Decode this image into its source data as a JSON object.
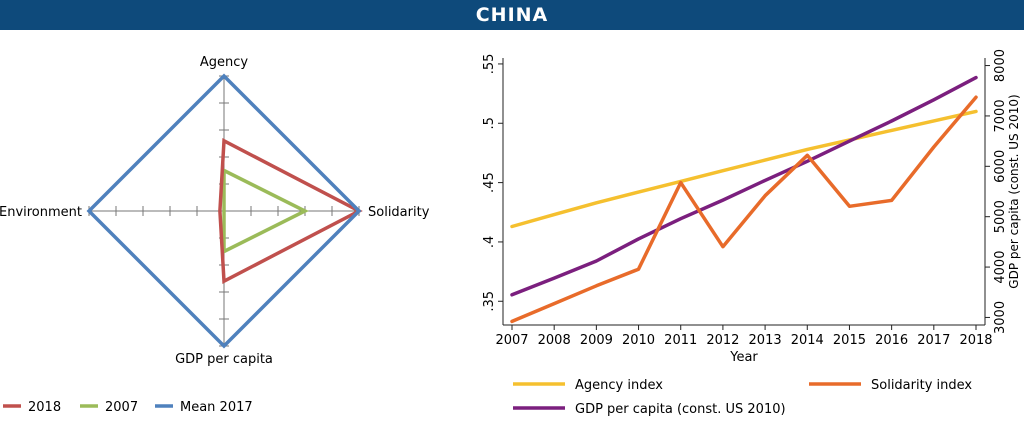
{
  "header": {
    "title": "CHINA"
  },
  "chart_data": [
    {
      "type": "radar",
      "axes": [
        "Agency",
        "Solidarity",
        "GDP per capita",
        "Environment"
      ],
      "range": [
        0,
        1
      ],
      "series": [
        {
          "name": "2018",
          "color": "#c0504d",
          "values": [
            0.52,
            1.0,
            0.52,
            0.03
          ]
        },
        {
          "name": "2007",
          "color": "#9bbb59",
          "values": [
            0.3,
            0.6,
            0.3,
            0.0
          ]
        },
        {
          "name": "Mean 2017",
          "color": "#4f81bd",
          "values": [
            1.0,
            1.0,
            1.0,
            1.0
          ]
        }
      ],
      "legend_position": "bottom-left"
    },
    {
      "type": "line",
      "x": [
        2007,
        2008,
        2009,
        2010,
        2011,
        2012,
        2013,
        2014,
        2015,
        2016,
        2017,
        2018
      ],
      "xlabel": "Year",
      "ylim": [
        0.33,
        0.555
      ],
      "yticks": [
        ".35",
        ".4",
        ".45",
        ".5",
        ".55"
      ],
      "y2label": "GDP per capita (const. US 2010)",
      "y2lim": [
        2850,
        8150
      ],
      "y2ticks": [
        "3000",
        "4000",
        "5000",
        "6000",
        "7000",
        "8000"
      ],
      "series": [
        {
          "name": "Agency index",
          "color": "#f5c02f",
          "axis": "left",
          "values": [
            0.413,
            0.423,
            0.433,
            0.442,
            0.451,
            0.46,
            0.469,
            0.478,
            0.486,
            0.494,
            0.502,
            0.51
          ]
        },
        {
          "name": "Solidarity index",
          "color": "#e86b2a",
          "axis": "left",
          "values": [
            0.333,
            0.348,
            0.363,
            0.377,
            0.45,
            0.396,
            0.439,
            0.473,
            0.43,
            0.435,
            0.48,
            0.522
          ]
        },
        {
          "name": "GDP per capita (const. US 2010)",
          "color": "#7b1f7e",
          "axis": "right",
          "values": [
            3450,
            3780,
            4120,
            4560,
            4960,
            5330,
            5720,
            6100,
            6500,
            6900,
            7320,
            7760
          ]
        }
      ],
      "legend_position": "bottom"
    }
  ]
}
